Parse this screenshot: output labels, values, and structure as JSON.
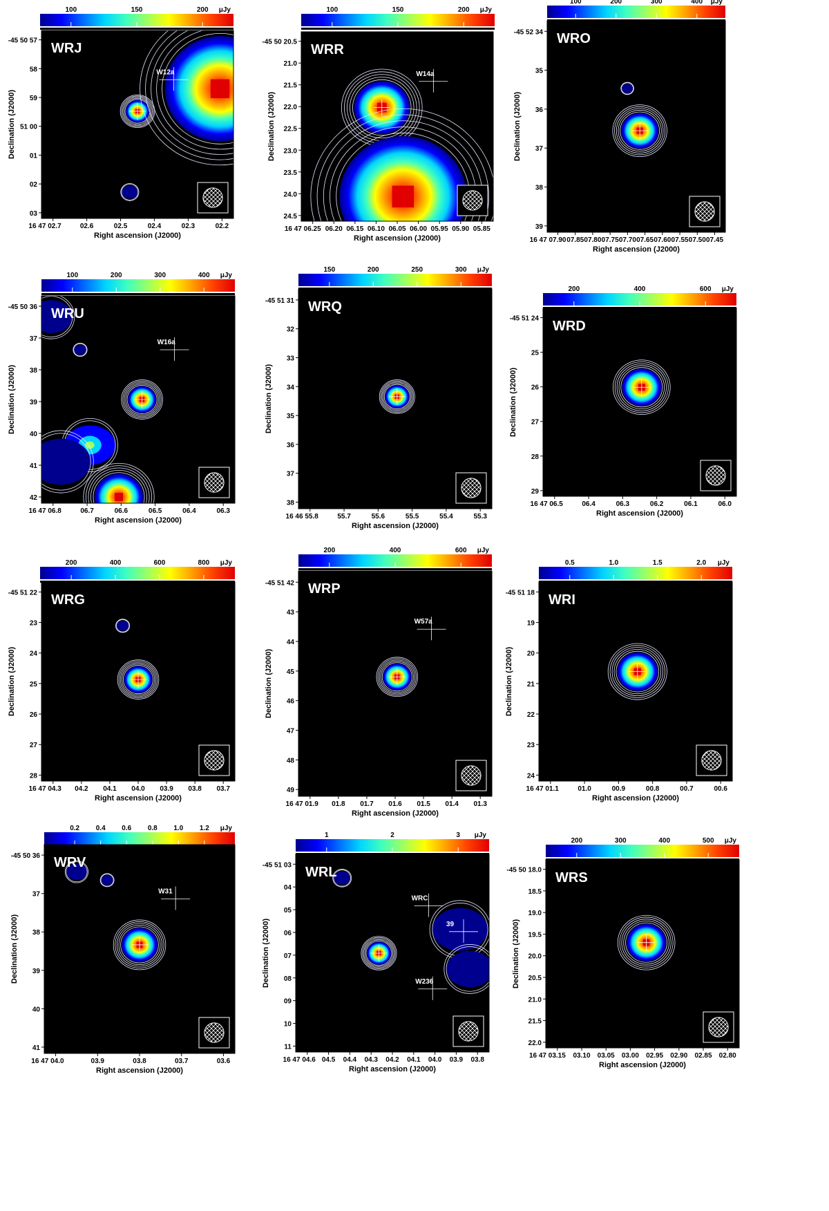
{
  "figure": {
    "xlabel": "Right ascension (J2000)",
    "ylabel": "Declination (J2000)"
  },
  "chart_data": [
    {
      "type": "heatmap",
      "label": "WRJ",
      "colorbar": {
        "ticks": [
          "100",
          "150",
          "200"
        ],
        "unit": "μJy"
      },
      "x_ticks": [
        "16 47 02.7",
        "02.6",
        "02.5",
        "02.4",
        "02.3",
        "02.2"
      ],
      "y_ticks": [
        "-45 50 57",
        "58",
        "59",
        "51 00",
        "01",
        "02",
        "03"
      ],
      "annotations": [
        "W12a"
      ],
      "sources": [
        {
          "x": 0.5,
          "y": 0.43,
          "size": 0.06,
          "peak": 0.95
        },
        {
          "x": 0.93,
          "y": 0.31,
          "size": 0.28,
          "peak": 1.0
        },
        {
          "x": 0.46,
          "y": 0.86,
          "size": 0.04,
          "peak": 0.25
        }
      ]
    },
    {
      "type": "heatmap",
      "label": "WRR",
      "colorbar": {
        "ticks": [
          "100",
          "150",
          "200"
        ],
        "unit": "μJy"
      },
      "x_ticks": [
        "16 47 06.25",
        "06.20",
        "06.15",
        "06.10",
        "06.05",
        "06.00",
        "05.95",
        "05.90",
        "05.85"
      ],
      "y_ticks": [
        "-45 50 20.5",
        "21.0",
        "21.5",
        "22.0",
        "22.5",
        "23.0",
        "23.5",
        "24.0",
        "24.5"
      ],
      "annotations": [
        "W14a"
      ],
      "sources": [
        {
          "x": 0.42,
          "y": 0.4,
          "size": 0.14,
          "peak": 0.95
        },
        {
          "x": 0.53,
          "y": 0.87,
          "size": 0.32,
          "peak": 1.0
        }
      ]
    },
    {
      "type": "heatmap",
      "label": "WRO",
      "colorbar": {
        "ticks": [
          "100",
          "200",
          "300",
          "400"
        ],
        "unit": "μJy"
      },
      "x_ticks": [
        "16 47 07.90",
        "07.85",
        "07.80",
        "07.75",
        "07.70",
        "07.65",
        "07.60",
        "07.55",
        "07.50",
        "07.45"
      ],
      "y_ticks": [
        "-45 52 34",
        "35",
        "36",
        "37",
        "38",
        "39"
      ],
      "annotations": [],
      "sources": [
        {
          "x": 0.52,
          "y": 0.52,
          "size": 0.1,
          "peak": 0.97
        },
        {
          "x": 0.45,
          "y": 0.32,
          "size": 0.03,
          "peak": 0.25
        }
      ]
    },
    {
      "type": "heatmap",
      "label": "WRU",
      "colorbar": {
        "ticks": [
          "100",
          "200",
          "300",
          "400"
        ],
        "unit": "μJy"
      },
      "x_ticks": [
        "16 47 06.8",
        "06.7",
        "06.6",
        "06.5",
        "06.4",
        "06.3"
      ],
      "y_ticks": [
        "-45 50 36",
        "37",
        "38",
        "39",
        "40",
        "41",
        "42"
      ],
      "annotations": [
        "W16a"
      ],
      "sources": [
        {
          "x": 0.52,
          "y": 0.5,
          "size": 0.07,
          "peak": 0.97
        },
        {
          "x": 0.4,
          "y": 0.97,
          "size": 0.12,
          "peak": 1.0
        },
        {
          "x": 0.25,
          "y": 0.72,
          "size": 0.12,
          "peak": 0.5
        },
        {
          "x": 0.1,
          "y": 0.8,
          "size": 0.14,
          "peak": 0.2
        },
        {
          "x": 0.05,
          "y": 0.1,
          "size": 0.1,
          "peak": 0.3
        },
        {
          "x": 0.2,
          "y": 0.26,
          "size": 0.03,
          "peak": 0.25
        }
      ]
    },
    {
      "type": "heatmap",
      "label": "WRQ",
      "colorbar": {
        "ticks": [
          "150",
          "200",
          "250",
          "300"
        ],
        "unit": "μJy"
      },
      "x_ticks": [
        "16 46 55.8",
        "55.7",
        "55.6",
        "55.5",
        "55.4",
        "55.3"
      ],
      "y_ticks": [
        "-45 51 31",
        "32",
        "33",
        "34",
        "35",
        "36",
        "37",
        "38"
      ],
      "annotations": [],
      "sources": [
        {
          "x": 0.51,
          "y": 0.49,
          "size": 0.06,
          "peak": 0.97
        }
      ]
    },
    {
      "type": "heatmap",
      "label": "WRD",
      "colorbar": {
        "ticks": [
          "200",
          "400",
          "600"
        ],
        "unit": "μJy"
      },
      "x_ticks": [
        "16 47 06.5",
        "06.4",
        "06.3",
        "06.2",
        "06.1",
        "06.0"
      ],
      "y_ticks": [
        "-45 51 24",
        "25",
        "26",
        "27",
        "28",
        "29"
      ],
      "annotations": [],
      "sources": [
        {
          "x": 0.51,
          "y": 0.42,
          "size": 0.1,
          "peak": 1.0
        }
      ]
    },
    {
      "type": "heatmap",
      "label": "WRG",
      "colorbar": {
        "ticks": [
          "200",
          "400",
          "600",
          "800"
        ],
        "unit": "μJy"
      },
      "x_ticks": [
        "16 47 04.3",
        "04.2",
        "04.1",
        "04.0",
        "03.9",
        "03.8",
        "03.7"
      ],
      "y_ticks": [
        "-45 51 22",
        "23",
        "24",
        "25",
        "26",
        "27",
        "28"
      ],
      "annotations": [],
      "sources": [
        {
          "x": 0.5,
          "y": 0.49,
          "size": 0.07,
          "peak": 1.0
        },
        {
          "x": 0.42,
          "y": 0.22,
          "size": 0.03,
          "peak": 0.25
        }
      ]
    },
    {
      "type": "heatmap",
      "label": "WRP",
      "colorbar": {
        "ticks": [
          "200",
          "400",
          "600"
        ],
        "unit": "μJy"
      },
      "x_ticks": [
        "16 47 01.9",
        "01.8",
        "01.7",
        "01.6",
        "01.5",
        "01.4",
        "01.3"
      ],
      "y_ticks": [
        "-45 51 42",
        "43",
        "44",
        "45",
        "46",
        "47",
        "48",
        "49"
      ],
      "annotations": [
        "W57a"
      ],
      "sources": [
        {
          "x": 0.51,
          "y": 0.47,
          "size": 0.07,
          "peak": 1.0
        }
      ]
    },
    {
      "type": "heatmap",
      "label": "WRI",
      "colorbar": {
        "ticks": [
          "0.5",
          "1.0",
          "1.5",
          "2.0"
        ],
        "unit": "μJy"
      },
      "x_ticks": [
        "16 47 01.1",
        "01.0",
        "00.9",
        "00.8",
        "00.7",
        "00.6"
      ],
      "y_ticks": [
        "-45 51 18",
        "19",
        "20",
        "21",
        "22",
        "23",
        "24"
      ],
      "annotations": [],
      "sources": [
        {
          "x": 0.51,
          "y": 0.45,
          "size": 0.1,
          "peak": 1.0
        }
      ]
    },
    {
      "type": "heatmap",
      "label": "WRV",
      "colorbar": {
        "ticks": [
          "0.2",
          "0.4",
          "0.6",
          "0.8",
          "1.0",
          "1.2"
        ],
        "unit": "μJy"
      },
      "x_ticks": [
        "16 47 04.0",
        "03.9",
        "03.8",
        "03.7",
        "03.6"
      ],
      "y_ticks": [
        "-45 50 36",
        "37",
        "38",
        "39",
        "40",
        "41"
      ],
      "annotations": [
        "W31"
      ],
      "sources": [
        {
          "x": 0.5,
          "y": 0.48,
          "size": 0.09,
          "peak": 1.0
        },
        {
          "x": 0.17,
          "y": 0.13,
          "size": 0.05,
          "peak": 0.25
        },
        {
          "x": 0.33,
          "y": 0.17,
          "size": 0.03,
          "peak": 0.22
        }
      ]
    },
    {
      "type": "heatmap",
      "label": "WRL",
      "colorbar": {
        "ticks": [
          "1",
          "2",
          "3"
        ],
        "unit": "μJy"
      },
      "x_ticks": [
        "16 47 04.6",
        "04.5",
        "04.4",
        "04.3",
        "04.2",
        "04.1",
        "04.0",
        "03.9",
        "03.8"
      ],
      "y_ticks": [
        "-45 51 03",
        "04",
        "05",
        "06",
        "07",
        "08",
        "09",
        "10",
        "11"
      ],
      "annotations": [
        "WRC",
        "W236",
        "39"
      ],
      "sources": [
        {
          "x": 0.43,
          "y": 0.5,
          "size": 0.06,
          "peak": 1.0
        },
        {
          "x": 0.24,
          "y": 0.12,
          "size": 0.04,
          "peak": 0.22
        },
        {
          "x": 0.85,
          "y": 0.38,
          "size": 0.13,
          "peak": 0.22
        },
        {
          "x": 0.9,
          "y": 0.58,
          "size": 0.11,
          "peak": 0.18
        }
      ]
    },
    {
      "type": "heatmap",
      "label": "WRS",
      "colorbar": {
        "ticks": [
          "200",
          "300",
          "400",
          "500"
        ],
        "unit": "μJy"
      },
      "x_ticks": [
        "16 47 03.15",
        "03.10",
        "03.05",
        "03.00",
        "02.95",
        "02.90",
        "02.85",
        "02.80"
      ],
      "y_ticks": [
        "-45 50 18.0",
        "18.5",
        "19.0",
        "19.5",
        "20.0",
        "20.5",
        "21.0",
        "21.5",
        "22.0"
      ],
      "annotations": [],
      "sources": [
        {
          "x": 0.52,
          "y": 0.44,
          "size": 0.1,
          "peak": 1.0
        }
      ]
    }
  ]
}
